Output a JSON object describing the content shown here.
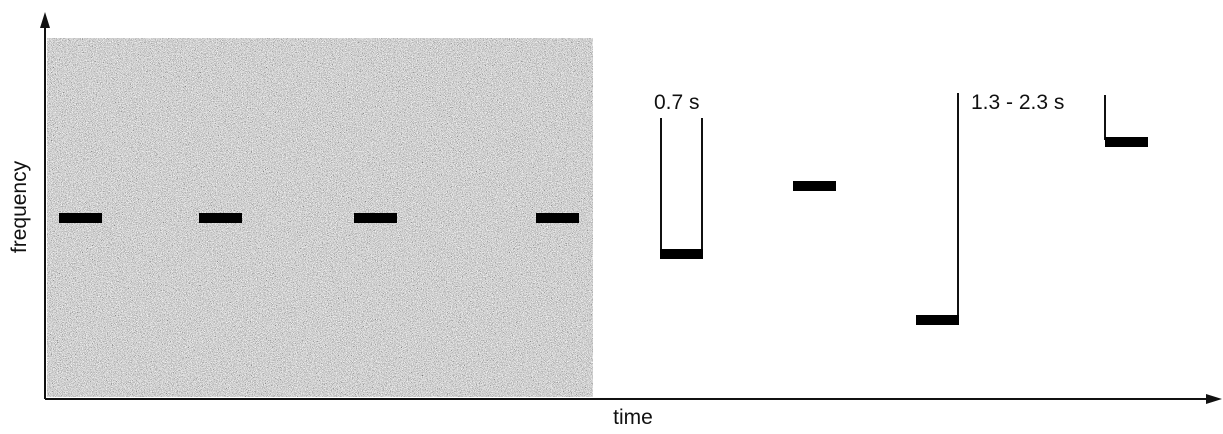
{
  "axes": {
    "x_label": "time",
    "y_label": "frequency"
  },
  "annotations": {
    "interval_short": "0.7 s",
    "interval_long": "1.3 - 2.3 s"
  },
  "colors": {
    "axis": "#111111",
    "tone": "#000000",
    "noise_base": "#a8a8a8"
  }
}
